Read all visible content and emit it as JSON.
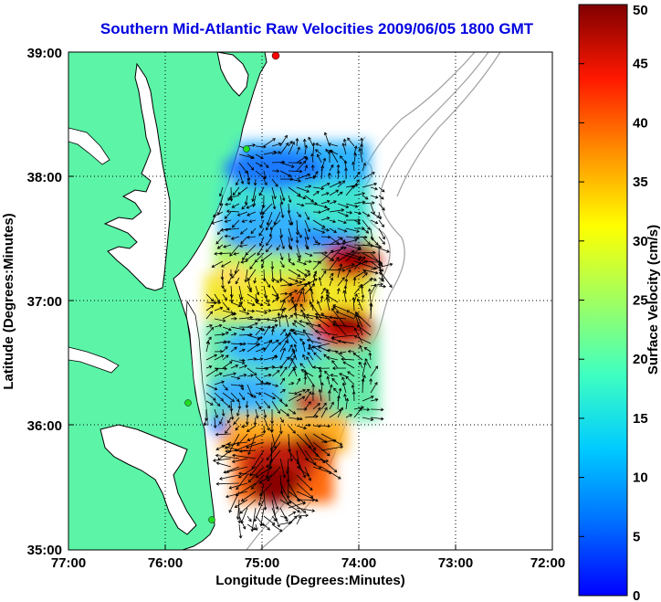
{
  "title": "Southern Mid-Atlantic Raw Velocities 2009/06/05 1800 GMT",
  "map": {
    "xlabel": "Longitude (Degrees:Minutes)",
    "ylabel": "Latitude (Degrees:Minutes)",
    "x_ticks": [
      "77:00",
      "76:00",
      "75:00",
      "74:00",
      "73:00",
      "72:00"
    ],
    "y_ticks": [
      "39:00",
      "38:00",
      "37:00",
      "36:00",
      "35:00"
    ],
    "lon_range": [
      -77,
      -72
    ],
    "lat_range": [
      35,
      39
    ],
    "grid": true,
    "land_color": "#5cf5a8",
    "coast_color": "#000000",
    "bathymetry_color": "#a0a0a0"
  },
  "colorbar": {
    "label": "Surface Velocity (cm/s)",
    "ticks": [
      "0",
      "5",
      "10",
      "15",
      "20",
      "25",
      "30",
      "35",
      "40",
      "45",
      "50"
    ],
    "range": [
      0,
      50
    ],
    "colormap": "jet"
  },
  "stations": [
    {
      "color": "#ff0000"
    },
    {
      "color": "#22dd22"
    },
    {
      "color": "#22dd22"
    },
    {
      "color": "#22dd22"
    }
  ]
}
